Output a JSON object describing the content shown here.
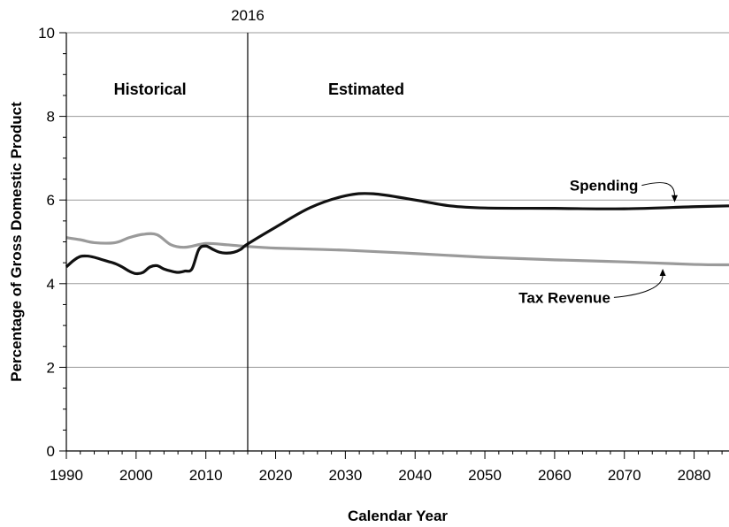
{
  "chart_data": {
    "type": "line",
    "xlabel": "Calendar Year",
    "ylabel": "Percentage of Gross Domestic Product",
    "xlim": [
      1990,
      2085
    ],
    "ylim": [
      0,
      10
    ],
    "x_ticks": [
      "1990",
      "2000",
      "2010",
      "2020",
      "2030",
      "2040",
      "2050",
      "2060",
      "2070",
      "2080"
    ],
    "y_ticks": [
      "0",
      "2",
      "4",
      "6",
      "8",
      "10"
    ],
    "grid": "horizontal",
    "divider": {
      "year": 2016,
      "label": "2016"
    },
    "regions": {
      "left": "Historical",
      "right": "Estimated"
    },
    "colors": {
      "spending": "#111111",
      "tax_revenue": "#9a9a9a",
      "grid": "#9a9a9a"
    },
    "series": [
      {
        "name": "Spending",
        "points": [
          [
            1990,
            4.4
          ],
          [
            1991,
            4.55
          ],
          [
            1992,
            4.65
          ],
          [
            1993,
            4.66
          ],
          [
            1994,
            4.63
          ],
          [
            1995,
            4.58
          ],
          [
            1996,
            4.53
          ],
          [
            1997,
            4.48
          ],
          [
            1998,
            4.4
          ],
          [
            1999,
            4.3
          ],
          [
            2000,
            4.24
          ],
          [
            2001,
            4.27
          ],
          [
            2002,
            4.4
          ],
          [
            2003,
            4.43
          ],
          [
            2004,
            4.35
          ],
          [
            2005,
            4.3
          ],
          [
            2006,
            4.27
          ],
          [
            2007,
            4.3
          ],
          [
            2008,
            4.35
          ],
          [
            2009,
            4.82
          ],
          [
            2010,
            4.9
          ],
          [
            2011,
            4.82
          ],
          [
            2012,
            4.75
          ],
          [
            2013,
            4.73
          ],
          [
            2014,
            4.75
          ],
          [
            2015,
            4.82
          ],
          [
            2016,
            4.95
          ],
          [
            2020,
            5.35
          ],
          [
            2025,
            5.82
          ],
          [
            2030,
            6.1
          ],
          [
            2034,
            6.15
          ],
          [
            2040,
            6.0
          ],
          [
            2045,
            5.86
          ],
          [
            2050,
            5.81
          ],
          [
            2060,
            5.8
          ],
          [
            2070,
            5.79
          ],
          [
            2080,
            5.84
          ],
          [
            2085,
            5.86
          ]
        ]
      },
      {
        "name": "Tax Revenue",
        "points": [
          [
            1990,
            5.1
          ],
          [
            1992,
            5.05
          ],
          [
            1994,
            4.98
          ],
          [
            1997,
            4.98
          ],
          [
            1999,
            5.1
          ],
          [
            2001,
            5.18
          ],
          [
            2003,
            5.17
          ],
          [
            2005,
            4.93
          ],
          [
            2007,
            4.87
          ],
          [
            2010,
            4.96
          ],
          [
            2013,
            4.93
          ],
          [
            2016,
            4.89
          ],
          [
            2020,
            4.85
          ],
          [
            2030,
            4.8
          ],
          [
            2040,
            4.72
          ],
          [
            2050,
            4.63
          ],
          [
            2060,
            4.57
          ],
          [
            2070,
            4.52
          ],
          [
            2080,
            4.46
          ],
          [
            2085,
            4.45
          ]
        ]
      }
    ]
  }
}
